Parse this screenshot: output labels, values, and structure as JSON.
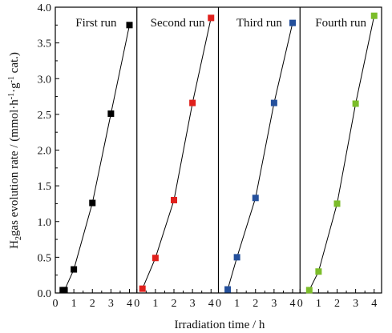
{
  "chart_data": {
    "type": "scatter",
    "xlabel": "Irradiation time / h",
    "ylabel_parts": [
      "H",
      "2",
      "gas evolution rate / (mmol·h",
      "-1",
      "·g",
      "-1",
      " cat.)"
    ],
    "ylim": [
      0,
      4.0
    ],
    "y_ticks": [
      "0.0",
      "0.5",
      "1.0",
      "1.5",
      "2.0",
      "2.5",
      "3.0",
      "3.5",
      "4.0"
    ],
    "xlim": [
      0,
      4.4
    ],
    "x_ticks": [
      "0",
      "1",
      "2",
      "3",
      "4"
    ],
    "markers": "square",
    "line": "fit-through-points",
    "panels": [
      {
        "name": "First run",
        "color": "#000000",
        "points": [
          {
            "x": 0.4,
            "y": 0.04
          },
          {
            "x": 0.5,
            "y": 0.04
          },
          {
            "x": 1.0,
            "y": 0.33
          },
          {
            "x": 2.0,
            "y": 1.26
          },
          {
            "x": 3.0,
            "y": 2.51
          },
          {
            "x": 4.0,
            "y": 3.75
          }
        ]
      },
      {
        "name": "Second run",
        "color": "#e0201c",
        "points": [
          {
            "x": 0.3,
            "y": 0.06
          },
          {
            "x": 1.0,
            "y": 0.49
          },
          {
            "x": 2.0,
            "y": 1.3
          },
          {
            "x": 3.0,
            "y": 2.66
          },
          {
            "x": 4.0,
            "y": 3.85
          }
        ]
      },
      {
        "name": "Third run",
        "color": "#24509c",
        "points": [
          {
            "x": 0.5,
            "y": 0.05
          },
          {
            "x": 1.0,
            "y": 0.5
          },
          {
            "x": 2.0,
            "y": 1.33
          },
          {
            "x": 3.0,
            "y": 2.66
          },
          {
            "x": 4.0,
            "y": 3.78
          }
        ]
      },
      {
        "name": "Fourth run",
        "color": "#7cbd2a",
        "points": [
          {
            "x": 0.5,
            "y": 0.04
          },
          {
            "x": 1.0,
            "y": 0.3
          },
          {
            "x": 2.0,
            "y": 1.25
          },
          {
            "x": 3.0,
            "y": 2.65
          },
          {
            "x": 4.0,
            "y": 3.88
          }
        ]
      }
    ]
  }
}
